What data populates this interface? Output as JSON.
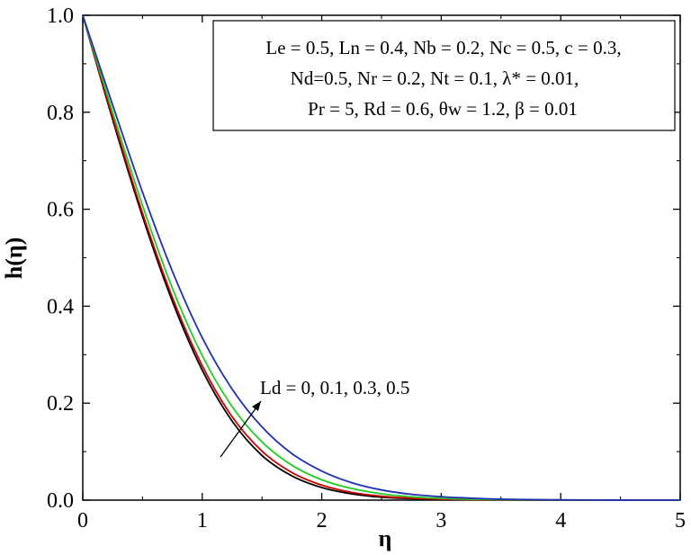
{
  "chart_data": {
    "type": "line",
    "xlabel": "η",
    "ylabel": "h(η)",
    "xlim": [
      0,
      5
    ],
    "ylim": [
      0,
      1.0
    ],
    "x_ticks": [
      "0",
      "1",
      "2",
      "3",
      "4",
      "5"
    ],
    "y_ticks": [
      "0.0",
      "0.2",
      "0.4",
      "0.6",
      "0.8",
      "1.0"
    ],
    "grid": false,
    "params_box": {
      "line1": "Le = 0.5, Ln = 0.4, Nb = 0.2, Nc = 0.5, c = 0.3,",
      "line2": "Nd=0.5, Nr = 0.2, Nt = 0.1,  λ* = 0.01,",
      "line3": "Pr = 5, Rd = 0.6, θw = 1.2, β = 0.01"
    },
    "annotation": "Ld = 0, 0.1, 0.3, 0.5",
    "x": [
      0,
      0.25,
      0.5,
      0.75,
      1.0,
      1.25,
      1.5,
      1.75,
      2.0,
      2.25,
      2.5,
      2.75,
      3.0,
      3.25,
      3.5,
      3.75,
      4.0,
      4.5,
      5.0
    ],
    "series": [
      {
        "color": "#000000",
        "values": [
          1.0,
          0.785,
          0.585,
          0.41,
          0.268,
          0.163,
          0.092,
          0.05,
          0.026,
          0.013,
          0.006,
          0.003,
          0.0015,
          0.0007,
          0.0003,
          0.0001,
          5e-05,
          0.0,
          0.0
        ]
      },
      {
        "color": "#cc0000",
        "values": [
          1.0,
          0.79,
          0.592,
          0.418,
          0.277,
          0.172,
          0.101,
          0.057,
          0.031,
          0.016,
          0.008,
          0.004,
          0.002,
          0.001,
          0.0005,
          0.0002,
          0.0001,
          0.0,
          0.0
        ]
      },
      {
        "color": "#22cc22",
        "values": [
          1.0,
          0.8,
          0.608,
          0.437,
          0.298,
          0.193,
          0.12,
          0.072,
          0.042,
          0.024,
          0.013,
          0.007,
          0.0037,
          0.0019,
          0.001,
          0.0005,
          0.0002,
          5e-05,
          0.0
        ]
      },
      {
        "color": "#1f2fb4",
        "values": [
          1.0,
          0.815,
          0.635,
          0.472,
          0.335,
          0.229,
          0.151,
          0.096,
          0.06,
          0.036,
          0.021,
          0.012,
          0.007,
          0.004,
          0.002,
          0.001,
          0.0006,
          0.0001,
          0.0
        ]
      }
    ]
  }
}
